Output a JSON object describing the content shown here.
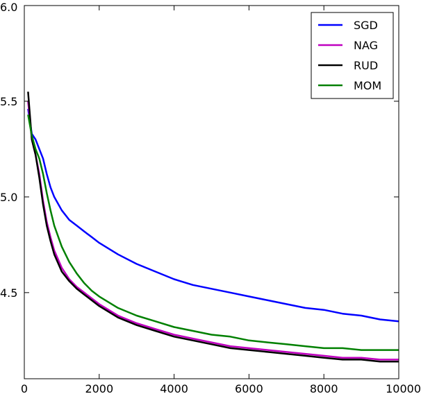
{
  "chart_data": {
    "type": "line",
    "title": "",
    "xlabel": "",
    "ylabel": "",
    "xlim": [
      0,
      10000
    ],
    "ylim": [
      4.05,
      6.0
    ],
    "xticks": [
      "0",
      "2000",
      "4000",
      "6000",
      "8000",
      "10000"
    ],
    "yticks": [
      "4.5",
      "5.0",
      "5.5",
      "6.0"
    ],
    "xtick_values": [
      0,
      2000,
      4000,
      6000,
      8000,
      10000
    ],
    "ytick_values": [
      4.5,
      5.0,
      5.5,
      6.0
    ],
    "grid": false,
    "legend_position": "top-right",
    "series": [
      {
        "name": "SGD",
        "color": "#0000ff",
        "x": [
          100,
          200,
          300,
          400,
          500,
          600,
          700,
          800,
          1000,
          1200,
          1400,
          1600,
          1800,
          2000,
          2500,
          3000,
          3500,
          4000,
          4500,
          5000,
          5500,
          6000,
          6500,
          7000,
          7500,
          8000,
          8500,
          9000,
          9500,
          10000
        ],
        "y": [
          5.46,
          5.33,
          5.3,
          5.25,
          5.2,
          5.12,
          5.05,
          5.0,
          4.93,
          4.88,
          4.85,
          4.82,
          4.79,
          4.76,
          4.7,
          4.65,
          4.61,
          4.57,
          4.54,
          4.52,
          4.5,
          4.48,
          4.46,
          4.44,
          4.42,
          4.41,
          4.39,
          4.38,
          4.36,
          4.35
        ]
      },
      {
        "name": "NAG",
        "color": "#bf00bf",
        "x": [
          100,
          200,
          300,
          400,
          500,
          600,
          700,
          800,
          1000,
          1200,
          1400,
          1600,
          1800,
          2000,
          2500,
          3000,
          3500,
          4000,
          4500,
          5000,
          5500,
          6000,
          6500,
          7000,
          7500,
          8000,
          8500,
          9000,
          9500,
          10000
        ],
        "y": [
          5.5,
          5.3,
          5.22,
          5.12,
          4.98,
          4.87,
          4.79,
          4.72,
          4.63,
          4.57,
          4.53,
          4.5,
          4.47,
          4.44,
          4.38,
          4.34,
          4.31,
          4.28,
          4.26,
          4.24,
          4.22,
          4.21,
          4.2,
          4.19,
          4.18,
          4.17,
          4.16,
          4.16,
          4.15,
          4.15
        ]
      },
      {
        "name": "RUD",
        "color": "#000000",
        "x": [
          100,
          200,
          300,
          400,
          500,
          600,
          700,
          800,
          1000,
          1200,
          1400,
          1600,
          1800,
          2000,
          2500,
          3000,
          3500,
          4000,
          4500,
          5000,
          5500,
          6000,
          6500,
          7000,
          7500,
          8000,
          8500,
          9000,
          9500,
          10000
        ],
        "y": [
          5.55,
          5.3,
          5.22,
          5.1,
          4.96,
          4.85,
          4.77,
          4.7,
          4.61,
          4.56,
          4.52,
          4.49,
          4.46,
          4.43,
          4.37,
          4.33,
          4.3,
          4.27,
          4.25,
          4.23,
          4.21,
          4.2,
          4.19,
          4.18,
          4.17,
          4.16,
          4.15,
          4.15,
          4.14,
          4.14
        ]
      },
      {
        "name": "MOM",
        "color": "#008000",
        "x": [
          100,
          200,
          300,
          400,
          500,
          600,
          700,
          800,
          1000,
          1200,
          1400,
          1600,
          1800,
          2000,
          2500,
          3000,
          3500,
          4000,
          4500,
          5000,
          5500,
          6000,
          6500,
          7000,
          7500,
          8000,
          8500,
          9000,
          9500,
          10000
        ],
        "y": [
          5.43,
          5.32,
          5.25,
          5.2,
          5.12,
          5.02,
          4.93,
          4.85,
          4.74,
          4.66,
          4.6,
          4.55,
          4.51,
          4.48,
          4.42,
          4.38,
          4.35,
          4.32,
          4.3,
          4.28,
          4.27,
          4.25,
          4.24,
          4.23,
          4.22,
          4.21,
          4.21,
          4.2,
          4.2,
          4.2
        ]
      }
    ]
  }
}
